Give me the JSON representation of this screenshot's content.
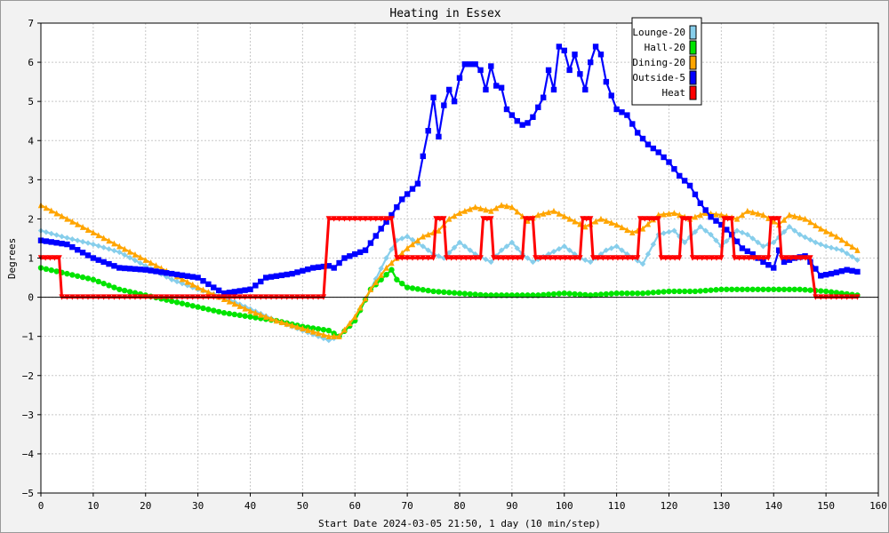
{
  "chart_data": {
    "type": "line",
    "title": "Heating in Essex",
    "xlabel": "Start Date 2024-03-05 21:50, 1 day (10 min/step)",
    "ylabel": "Degrees",
    "xlim": [
      0,
      160
    ],
    "ylim": [
      -5,
      7
    ],
    "x_ticks": [
      "0",
      "10",
      "20",
      "30",
      "40",
      "50",
      "60",
      "70",
      "80",
      "90",
      "100",
      "110",
      "120",
      "130",
      "140",
      "150",
      "160"
    ],
    "y_ticks": [
      "7",
      "6",
      "5",
      "4",
      "3",
      "2",
      "1",
      "0",
      "−1",
      "−2",
      "−3",
      "−4",
      "−5"
    ],
    "grid": true,
    "legend_position": "top-right",
    "series": [
      {
        "name": "Lounge-20",
        "color": "#87ceeb",
        "marker": "diamond",
        "points": [
          [
            0,
            1.7
          ],
          [
            4,
            1.55
          ],
          [
            10,
            1.35
          ],
          [
            15,
            1.15
          ],
          [
            20,
            0.8
          ],
          [
            25,
            0.45
          ],
          [
            30,
            0.2
          ],
          [
            35,
            0.0
          ],
          [
            40,
            -0.3
          ],
          [
            45,
            -0.6
          ],
          [
            50,
            -0.85
          ],
          [
            55,
            -1.1
          ],
          [
            57,
            -1.0
          ],
          [
            60,
            -0.6
          ],
          [
            63,
            0.2
          ],
          [
            66,
            1.0
          ],
          [
            68,
            1.45
          ],
          [
            70,
            1.55
          ],
          [
            73,
            1.3
          ],
          [
            75,
            1.1
          ],
          [
            77,
            1.0
          ],
          [
            80,
            1.4
          ],
          [
            83,
            1.1
          ],
          [
            86,
            0.9
          ],
          [
            88,
            1.2
          ],
          [
            90,
            1.4
          ],
          [
            92,
            1.1
          ],
          [
            94,
            0.9
          ],
          [
            97,
            1.1
          ],
          [
            100,
            1.3
          ],
          [
            103,
            1.0
          ],
          [
            105,
            0.9
          ],
          [
            108,
            1.2
          ],
          [
            110,
            1.3
          ],
          [
            112,
            1.1
          ],
          [
            115,
            0.85
          ],
          [
            118,
            1.6
          ],
          [
            121,
            1.7
          ],
          [
            123,
            1.4
          ],
          [
            126,
            1.8
          ],
          [
            128,
            1.6
          ],
          [
            130,
            1.3
          ],
          [
            133,
            1.7
          ],
          [
            135,
            1.6
          ],
          [
            138,
            1.3
          ],
          [
            140,
            1.4
          ],
          [
            143,
            1.8
          ],
          [
            145,
            1.6
          ],
          [
            148,
            1.4
          ],
          [
            150,
            1.3
          ],
          [
            153,
            1.2
          ],
          [
            156,
            0.95
          ]
        ]
      },
      {
        "name": "Hall-20",
        "color": "#00e400",
        "marker": "circle",
        "points": [
          [
            0,
            0.75
          ],
          [
            5,
            0.6
          ],
          [
            10,
            0.45
          ],
          [
            15,
            0.2
          ],
          [
            20,
            0.05
          ],
          [
            25,
            -0.1
          ],
          [
            30,
            -0.25
          ],
          [
            35,
            -0.4
          ],
          [
            40,
            -0.5
          ],
          [
            45,
            -0.6
          ],
          [
            50,
            -0.75
          ],
          [
            55,
            -0.85
          ],
          [
            57,
            -1.0
          ],
          [
            60,
            -0.6
          ],
          [
            63,
            0.2
          ],
          [
            65,
            0.45
          ],
          [
            67,
            0.7
          ],
          [
            68,
            0.45
          ],
          [
            70,
            0.25
          ],
          [
            75,
            0.15
          ],
          [
            80,
            0.1
          ],
          [
            85,
            0.05
          ],
          [
            90,
            0.05
          ],
          [
            95,
            0.05
          ],
          [
            100,
            0.1
          ],
          [
            105,
            0.05
          ],
          [
            110,
            0.1
          ],
          [
            115,
            0.1
          ],
          [
            120,
            0.15
          ],
          [
            125,
            0.15
          ],
          [
            130,
            0.2
          ],
          [
            135,
            0.2
          ],
          [
            140,
            0.2
          ],
          [
            145,
            0.2
          ],
          [
            150,
            0.15
          ],
          [
            156,
            0.05
          ]
        ]
      },
      {
        "name": "Dining-20",
        "color": "#ffa500",
        "marker": "triangle",
        "points": [
          [
            0,
            2.35
          ],
          [
            5,
            2.0
          ],
          [
            10,
            1.65
          ],
          [
            15,
            1.3
          ],
          [
            20,
            0.95
          ],
          [
            25,
            0.6
          ],
          [
            30,
            0.25
          ],
          [
            35,
            -0.05
          ],
          [
            40,
            -0.35
          ],
          [
            45,
            -0.6
          ],
          [
            50,
            -0.8
          ],
          [
            55,
            -1.0
          ],
          [
            57,
            -1.0
          ],
          [
            60,
            -0.5
          ],
          [
            63,
            0.2
          ],
          [
            66,
            0.75
          ],
          [
            68,
            1.0
          ],
          [
            70,
            1.25
          ],
          [
            73,
            1.55
          ],
          [
            76,
            1.7
          ],
          [
            78,
            2.0
          ],
          [
            80,
            2.15
          ],
          [
            83,
            2.3
          ],
          [
            86,
            2.2
          ],
          [
            88,
            2.35
          ],
          [
            90,
            2.3
          ],
          [
            93,
            1.95
          ],
          [
            95,
            2.1
          ],
          [
            98,
            2.2
          ],
          [
            101,
            2.0
          ],
          [
            104,
            1.8
          ],
          [
            107,
            2.0
          ],
          [
            110,
            1.85
          ],
          [
            113,
            1.65
          ],
          [
            115,
            1.75
          ],
          [
            118,
            2.1
          ],
          [
            121,
            2.15
          ],
          [
            124,
            2.0
          ],
          [
            127,
            2.15
          ],
          [
            130,
            2.1
          ],
          [
            133,
            2.0
          ],
          [
            135,
            2.2
          ],
          [
            138,
            2.1
          ],
          [
            141,
            1.85
          ],
          [
            143,
            2.1
          ],
          [
            146,
            2.0
          ],
          [
            149,
            1.75
          ],
          [
            152,
            1.55
          ],
          [
            156,
            1.2
          ]
        ]
      },
      {
        "name": "Outside-5",
        "color": "#0000ff",
        "marker": "square",
        "points": [
          [
            0,
            1.45
          ],
          [
            5,
            1.35
          ],
          [
            10,
            1.0
          ],
          [
            15,
            0.75
          ],
          [
            20,
            0.7
          ],
          [
            25,
            0.6
          ],
          [
            30,
            0.5
          ],
          [
            33,
            0.25
          ],
          [
            35,
            0.1
          ],
          [
            40,
            0.2
          ],
          [
            43,
            0.5
          ],
          [
            48,
            0.6
          ],
          [
            52,
            0.75
          ],
          [
            55,
            0.8
          ],
          [
            56,
            0.75
          ],
          [
            58,
            1.0
          ],
          [
            62,
            1.2
          ],
          [
            65,
            1.75
          ],
          [
            67,
            2.1
          ],
          [
            69,
            2.5
          ],
          [
            72,
            2.9
          ],
          [
            73,
            3.6
          ],
          [
            74,
            4.25
          ],
          [
            75,
            5.1
          ],
          [
            76,
            4.1
          ],
          [
            77,
            4.9
          ],
          [
            78,
            5.3
          ],
          [
            79,
            5.0
          ],
          [
            80,
            5.6
          ],
          [
            81,
            5.95
          ],
          [
            83,
            5.95
          ],
          [
            84,
            5.8
          ],
          [
            85,
            5.3
          ],
          [
            86,
            5.9
          ],
          [
            87,
            5.4
          ],
          [
            88,
            5.35
          ],
          [
            89,
            4.8
          ],
          [
            91,
            4.5
          ],
          [
            92,
            4.4
          ],
          [
            93,
            4.45
          ],
          [
            94,
            4.6
          ],
          [
            96,
            5.1
          ],
          [
            97,
            5.8
          ],
          [
            98,
            5.3
          ],
          [
            99,
            6.4
          ],
          [
            100,
            6.3
          ],
          [
            101,
            5.8
          ],
          [
            102,
            6.2
          ],
          [
            103,
            5.7
          ],
          [
            104,
            5.3
          ],
          [
            105,
            6.0
          ],
          [
            106,
            6.4
          ],
          [
            107,
            6.2
          ],
          [
            108,
            5.5
          ],
          [
            110,
            4.8
          ],
          [
            112,
            4.65
          ],
          [
            114,
            4.2
          ],
          [
            116,
            3.9
          ],
          [
            118,
            3.7
          ],
          [
            120,
            3.45
          ],
          [
            122,
            3.1
          ],
          [
            124,
            2.85
          ],
          [
            126,
            2.4
          ],
          [
            128,
            2.05
          ],
          [
            130,
            1.85
          ],
          [
            132,
            1.6
          ],
          [
            134,
            1.25
          ],
          [
            136,
            1.1
          ],
          [
            138,
            0.9
          ],
          [
            140,
            0.75
          ],
          [
            141,
            1.2
          ],
          [
            142,
            0.9
          ],
          [
            144,
            1.0
          ],
          [
            146,
            1.05
          ],
          [
            147,
            0.9
          ],
          [
            149,
            0.55
          ],
          [
            151,
            0.6
          ],
          [
            154,
            0.7
          ],
          [
            156,
            0.65
          ]
        ]
      },
      {
        "name": "Heat",
        "color": "#ff0000",
        "marker": "triangle-down",
        "points": [
          [
            0,
            1
          ],
          [
            3.5,
            1
          ],
          [
            4,
            0
          ],
          [
            54,
            0
          ],
          [
            55,
            2
          ],
          [
            67,
            2
          ],
          [
            68,
            1
          ],
          [
            75,
            1
          ],
          [
            75.5,
            2
          ],
          [
            77,
            2
          ],
          [
            77.5,
            1
          ],
          [
            84,
            1
          ],
          [
            84.5,
            2
          ],
          [
            86,
            2
          ],
          [
            86.5,
            1
          ],
          [
            92,
            1
          ],
          [
            92.5,
            2
          ],
          [
            94,
            2
          ],
          [
            94.5,
            1
          ],
          [
            103,
            1
          ],
          [
            103.5,
            2
          ],
          [
            105,
            2
          ],
          [
            105.5,
            1
          ],
          [
            114,
            1
          ],
          [
            114.5,
            2
          ],
          [
            118,
            2
          ],
          [
            118.5,
            1
          ],
          [
            122,
            1
          ],
          [
            122.5,
            2
          ],
          [
            124,
            2
          ],
          [
            124.5,
            1
          ],
          [
            130,
            1
          ],
          [
            130.5,
            2
          ],
          [
            132,
            2
          ],
          [
            132.5,
            1
          ],
          [
            139,
            1
          ],
          [
            139.5,
            2
          ],
          [
            141,
            2
          ],
          [
            141.5,
            1
          ],
          [
            147,
            1
          ],
          [
            148,
            0
          ],
          [
            156,
            0
          ]
        ]
      }
    ]
  }
}
